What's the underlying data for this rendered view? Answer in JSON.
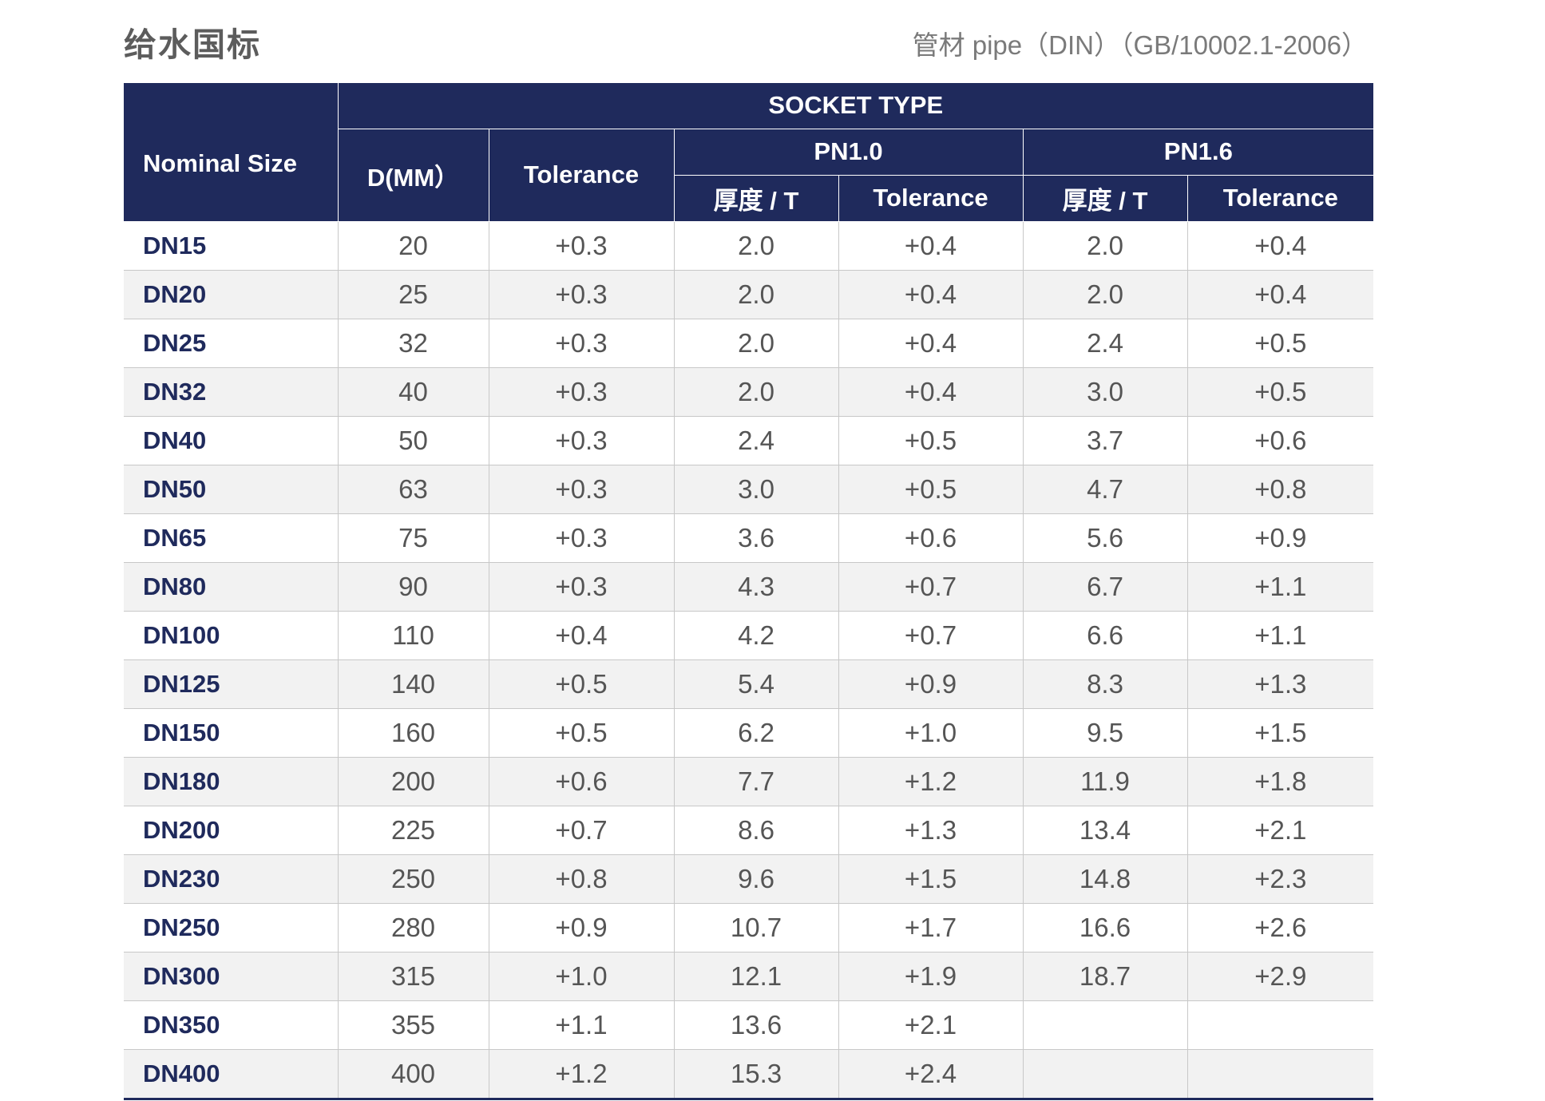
{
  "page": {
    "title": "给水国标",
    "subtitle": "管材 pipe（DIN）（GB/10002.1-2006）"
  },
  "table": {
    "headers": {
      "nominal_size": "Nominal Size",
      "socket_type": "SOCKET TYPE",
      "d_mm": "D(MM）",
      "tolerance": "Tolerance",
      "pn10": "PN1.0",
      "pn16": "PN1.6",
      "pn10_thickness": "厚度 / T",
      "pn10_tolerance": "Tolerance",
      "pn16_thickness": "厚度 / T",
      "pn16_tolerance": "Tolerance"
    },
    "rows": [
      {
        "size": "DN15",
        "d": "20",
        "tol": "+0.3",
        "pn10_t": "2.0",
        "pn10_tol": "+0.4",
        "pn16_t": "2.0",
        "pn16_tol": "+0.4"
      },
      {
        "size": "DN20",
        "d": "25",
        "tol": "+0.3",
        "pn10_t": "2.0",
        "pn10_tol": "+0.4",
        "pn16_t": "2.0",
        "pn16_tol": "+0.4"
      },
      {
        "size": "DN25",
        "d": "32",
        "tol": "+0.3",
        "pn10_t": "2.0",
        "pn10_tol": "+0.4",
        "pn16_t": "2.4",
        "pn16_tol": "+0.5"
      },
      {
        "size": "DN32",
        "d": "40",
        "tol": "+0.3",
        "pn10_t": "2.0",
        "pn10_tol": "+0.4",
        "pn16_t": "3.0",
        "pn16_tol": "+0.5"
      },
      {
        "size": "DN40",
        "d": "50",
        "tol": "+0.3",
        "pn10_t": "2.4",
        "pn10_tol": "+0.5",
        "pn16_t": "3.7",
        "pn16_tol": "+0.6"
      },
      {
        "size": "DN50",
        "d": "63",
        "tol": "+0.3",
        "pn10_t": "3.0",
        "pn10_tol": "+0.5",
        "pn16_t": "4.7",
        "pn16_tol": "+0.8"
      },
      {
        "size": "DN65",
        "d": "75",
        "tol": "+0.3",
        "pn10_t": "3.6",
        "pn10_tol": "+0.6",
        "pn16_t": "5.6",
        "pn16_tol": "+0.9"
      },
      {
        "size": "DN80",
        "d": "90",
        "tol": "+0.3",
        "pn10_t": "4.3",
        "pn10_tol": "+0.7",
        "pn16_t": "6.7",
        "pn16_tol": "+1.1"
      },
      {
        "size": "DN100",
        "d": "110",
        "tol": "+0.4",
        "pn10_t": "4.2",
        "pn10_tol": "+0.7",
        "pn16_t": "6.6",
        "pn16_tol": "+1.1"
      },
      {
        "size": "DN125",
        "d": "140",
        "tol": "+0.5",
        "pn10_t": "5.4",
        "pn10_tol": "+0.9",
        "pn16_t": "8.3",
        "pn16_tol": "+1.3"
      },
      {
        "size": "DN150",
        "d": "160",
        "tol": "+0.5",
        "pn10_t": "6.2",
        "pn10_tol": "+1.0",
        "pn16_t": "9.5",
        "pn16_tol": "+1.5"
      },
      {
        "size": "DN180",
        "d": "200",
        "tol": "+0.6",
        "pn10_t": "7.7",
        "pn10_tol": "+1.2",
        "pn16_t": "11.9",
        "pn16_tol": "+1.8"
      },
      {
        "size": "DN200",
        "d": "225",
        "tol": "+0.7",
        "pn10_t": "8.6",
        "pn10_tol": "+1.3",
        "pn16_t": "13.4",
        "pn16_tol": "+2.1"
      },
      {
        "size": "DN230",
        "d": "250",
        "tol": "+0.8",
        "pn10_t": "9.6",
        "pn10_tol": "+1.5",
        "pn16_t": "14.8",
        "pn16_tol": "+2.3"
      },
      {
        "size": "DN250",
        "d": "280",
        "tol": "+0.9",
        "pn10_t": "10.7",
        "pn10_tol": "+1.7",
        "pn16_t": "16.6",
        "pn16_tol": "+2.6"
      },
      {
        "size": "DN300",
        "d": "315",
        "tol": "+1.0",
        "pn10_t": "12.1",
        "pn10_tol": "+1.9",
        "pn16_t": "18.7",
        "pn16_tol": "+2.9"
      },
      {
        "size": "DN350",
        "d": "355",
        "tol": "+1.1",
        "pn10_t": "13.6",
        "pn10_tol": "+2.1",
        "pn16_t": "",
        "pn16_tol": ""
      },
      {
        "size": "DN400",
        "d": "400",
        "tol": "+1.2",
        "pn10_t": "15.3",
        "pn10_tol": "+2.4",
        "pn16_t": "",
        "pn16_tol": ""
      }
    ]
  },
  "colors": {
    "header_bg": "#1f2a5c",
    "size_text": "#1f2a5c",
    "stripe": "#f2f2f2"
  }
}
